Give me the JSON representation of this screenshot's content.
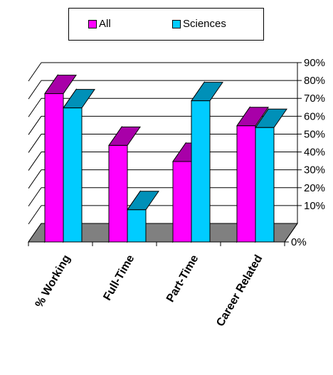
{
  "chart_data": {
    "type": "bar",
    "categories": [
      "% Working",
      "Full-Time",
      "Part-Time",
      "Career Related"
    ],
    "series": [
      {
        "name": "All",
        "values": [
          83,
          54,
          45,
          65
        ]
      },
      {
        "name": "Sciences",
        "values": [
          75,
          18,
          79,
          64
        ]
      }
    ],
    "ylim": [
      0,
      90
    ],
    "y_ticks": [
      "0%",
      "10%",
      "20%",
      "30%",
      "40%",
      "50%",
      "60%",
      "70%",
      "80%",
      "90%"
    ],
    "y_tick_values": [
      0,
      10,
      20,
      30,
      40,
      50,
      60,
      70,
      80,
      90
    ],
    "grid": true,
    "three_d": true,
    "legend_position": "top"
  },
  "colors": {
    "all_front": "#FF00FF",
    "all_dark": "#A800A8",
    "sciences_front": "#00CCFF",
    "sciences_dark": "#0090B8",
    "floor": "#808080"
  }
}
